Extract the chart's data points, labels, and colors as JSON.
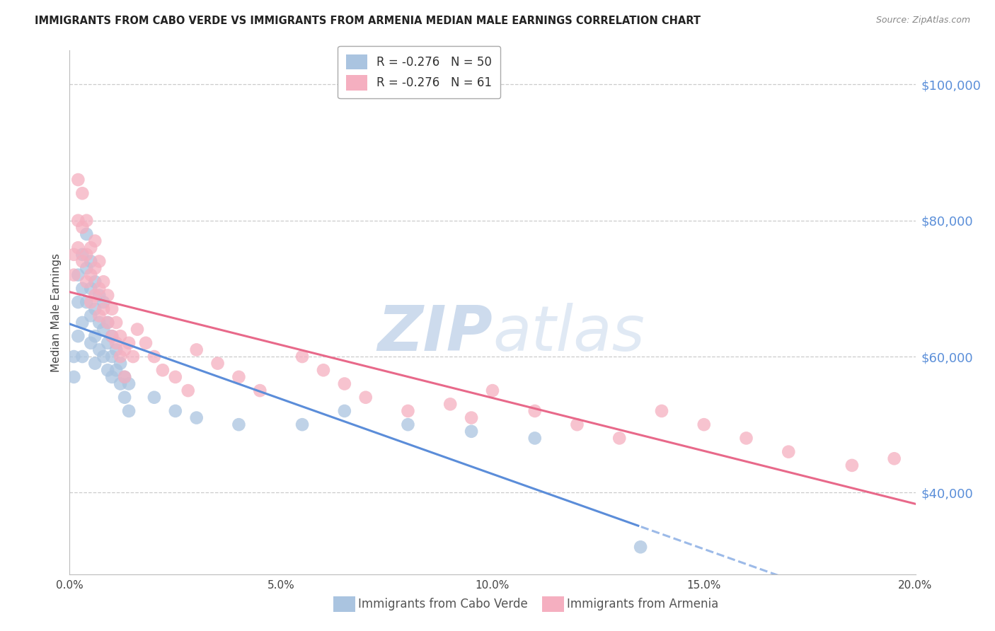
{
  "title": "IMMIGRANTS FROM CABO VERDE VS IMMIGRANTS FROM ARMENIA MEDIAN MALE EARNINGS CORRELATION CHART",
  "source": "Source: ZipAtlas.com",
  "xlabel_bottom": [
    "Immigrants from Cabo Verde",
    "Immigrants from Armenia"
  ],
  "ylabel": "Median Male Earnings",
  "xlim": [
    0.0,
    0.2
  ],
  "ylim": [
    28000,
    105000
  ],
  "yticks": [
    40000,
    60000,
    80000,
    100000
  ],
  "xticks": [
    0.0,
    0.05,
    0.1,
    0.15,
    0.2
  ],
  "ytick_labels": [
    "$40,000",
    "$60,000",
    "$80,000",
    "$100,000"
  ],
  "blue_color": "#aac4e0",
  "pink_color": "#f5afc0",
  "blue_line_color": "#5b8dd9",
  "pink_line_color": "#e8698a",
  "R_blue": -0.276,
  "N_blue": 50,
  "R_pink": -0.276,
  "N_pink": 61,
  "cabo_verde_x": [
    0.001,
    0.001,
    0.002,
    0.002,
    0.002,
    0.003,
    0.003,
    0.003,
    0.003,
    0.004,
    0.004,
    0.004,
    0.005,
    0.005,
    0.005,
    0.005,
    0.006,
    0.006,
    0.006,
    0.006,
    0.007,
    0.007,
    0.007,
    0.008,
    0.008,
    0.008,
    0.009,
    0.009,
    0.009,
    0.01,
    0.01,
    0.01,
    0.011,
    0.011,
    0.012,
    0.012,
    0.013,
    0.013,
    0.014,
    0.014,
    0.02,
    0.025,
    0.03,
    0.04,
    0.055,
    0.065,
    0.08,
    0.095,
    0.11,
    0.135
  ],
  "cabo_verde_y": [
    60000,
    57000,
    72000,
    68000,
    63000,
    75000,
    70000,
    65000,
    60000,
    78000,
    73000,
    68000,
    74000,
    70000,
    66000,
    62000,
    71000,
    67000,
    63000,
    59000,
    69000,
    65000,
    61000,
    68000,
    64000,
    60000,
    65000,
    62000,
    58000,
    63000,
    60000,
    57000,
    61000,
    58000,
    59000,
    56000,
    57000,
    54000,
    56000,
    52000,
    54000,
    52000,
    51000,
    50000,
    50000,
    52000,
    50000,
    49000,
    48000,
    32000
  ],
  "armenia_x": [
    0.001,
    0.001,
    0.002,
    0.002,
    0.002,
    0.003,
    0.003,
    0.003,
    0.004,
    0.004,
    0.004,
    0.005,
    0.005,
    0.005,
    0.006,
    0.006,
    0.006,
    0.007,
    0.007,
    0.007,
    0.008,
    0.008,
    0.009,
    0.009,
    0.01,
    0.01,
    0.011,
    0.011,
    0.012,
    0.012,
    0.013,
    0.013,
    0.014,
    0.015,
    0.016,
    0.018,
    0.02,
    0.022,
    0.025,
    0.028,
    0.03,
    0.035,
    0.04,
    0.045,
    0.055,
    0.06,
    0.065,
    0.07,
    0.08,
    0.09,
    0.095,
    0.1,
    0.11,
    0.12,
    0.13,
    0.14,
    0.15,
    0.16,
    0.17,
    0.185,
    0.195
  ],
  "armenia_y": [
    75000,
    72000,
    86000,
    80000,
    76000,
    84000,
    79000,
    74000,
    80000,
    75000,
    71000,
    76000,
    72000,
    68000,
    77000,
    73000,
    69000,
    74000,
    70000,
    66000,
    71000,
    67000,
    69000,
    65000,
    67000,
    63000,
    65000,
    62000,
    63000,
    60000,
    61000,
    57000,
    62000,
    60000,
    64000,
    62000,
    60000,
    58000,
    57000,
    55000,
    61000,
    59000,
    57000,
    55000,
    60000,
    58000,
    56000,
    54000,
    52000,
    53000,
    51000,
    55000,
    52000,
    50000,
    48000,
    52000,
    50000,
    48000,
    46000,
    44000,
    45000
  ],
  "watermark_zip": "ZIP",
  "watermark_atlas": "atlas",
  "background_color": "#ffffff",
  "grid_color": "#cccccc",
  "axis_label_color": "#5b8fd9",
  "title_color": "#222222"
}
